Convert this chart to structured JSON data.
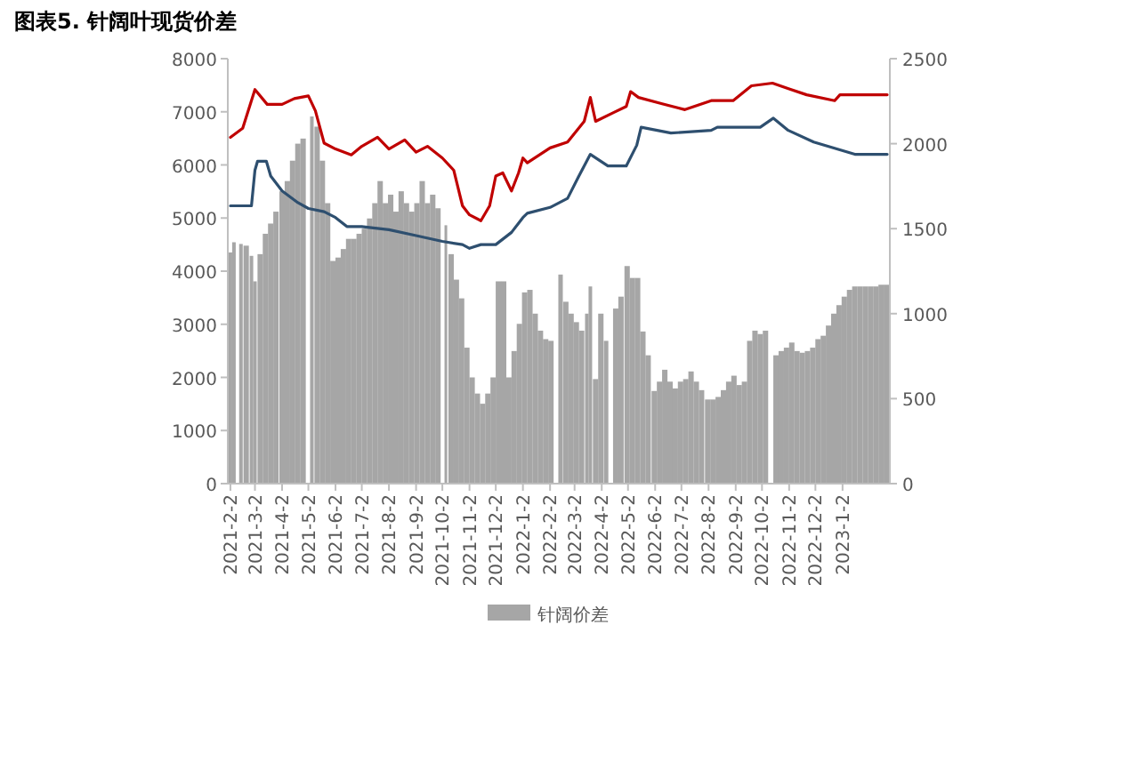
{
  "chart_data": {
    "type": "bar",
    "title": "图表5.   针阔叶现货价差",
    "xlim": [
      "2021-01-30",
      "2023-02-25"
    ],
    "xticks": [
      {
        "value": "2021-02-02",
        "label": "2021-2-2"
      },
      {
        "value": "2021-03-02",
        "label": "2021-3-2"
      },
      {
        "value": "2021-04-02",
        "label": "2021-4-2"
      },
      {
        "value": "2021-05-02",
        "label": "2021-5-2"
      },
      {
        "value": "2021-06-02",
        "label": "2021-6-2"
      },
      {
        "value": "2021-07-02",
        "label": "2021-7-2"
      },
      {
        "value": "2021-08-02",
        "label": "2021-8-2"
      },
      {
        "value": "2021-09-02",
        "label": "2021-9-2"
      },
      {
        "value": "2021-10-02",
        "label": "2021-10-2"
      },
      {
        "value": "2021-11-02",
        "label": "2021-11-2"
      },
      {
        "value": "2021-12-02",
        "label": "2021-12-2"
      },
      {
        "value": "2022-01-02",
        "label": "2022-1-2"
      },
      {
        "value": "2022-02-02",
        "label": "2022-2-2"
      },
      {
        "value": "2022-03-02",
        "label": "2022-3-2"
      },
      {
        "value": "2022-04-02",
        "label": "2022-4-2"
      },
      {
        "value": "2022-05-02",
        "label": "2022-5-2"
      },
      {
        "value": "2022-06-02",
        "label": "2022-6-2"
      },
      {
        "value": "2022-07-02",
        "label": "2022-7-2"
      },
      {
        "value": "2022-08-02",
        "label": "2022-8-2"
      },
      {
        "value": "2022-09-02",
        "label": "2022-9-2"
      },
      {
        "value": "2022-10-02",
        "label": "2022-10-2"
      },
      {
        "value": "2022-11-02",
        "label": "2022-11-2"
      },
      {
        "value": "2022-12-02",
        "label": "2022-12-2"
      },
      {
        "value": "2023-01-02",
        "label": "2023-1-2"
      }
    ],
    "ylim": [
      0,
      8000
    ],
    "yticks": [
      0,
      1000,
      2000,
      3000,
      4000,
      5000,
      6000,
      7000,
      8000
    ],
    "y2lim": [
      0,
      2500
    ],
    "y2ticks": [
      0,
      500,
      1000,
      1500,
      2000,
      2500
    ],
    "legend": "bottom",
    "grid": false,
    "series": [
      {
        "name": "针阔价差",
        "axis": "y2",
        "color": "#a6a6a6",
        "x": [
          "2021-02-02",
          "2021-02-06",
          "2021-02-10",
          "2021-02-14",
          "2021-02-20",
          "2021-02-26",
          "2021-03-02",
          "2021-03-08",
          "2021-03-14",
          "2021-03-20",
          "2021-03-26",
          "2021-04-02",
          "2021-04-08",
          "2021-04-14",
          "2021-04-20",
          "2021-04-26",
          "2021-05-02",
          "2021-05-06",
          "2021-05-12",
          "2021-05-18",
          "2021-05-24",
          "2021-05-30",
          "2021-06-05",
          "2021-06-11",
          "2021-06-17",
          "2021-06-23",
          "2021-06-29",
          "2021-07-05",
          "2021-07-11",
          "2021-07-17",
          "2021-07-23",
          "2021-07-29",
          "2021-08-04",
          "2021-08-10",
          "2021-08-16",
          "2021-08-22",
          "2021-08-28",
          "2021-09-03",
          "2021-09-09",
          "2021-09-15",
          "2021-09-21",
          "2021-09-27",
          "2021-10-03",
          "2021-10-06",
          "2021-10-12",
          "2021-10-18",
          "2021-10-24",
          "2021-10-30",
          "2021-11-05",
          "2021-11-11",
          "2021-11-17",
          "2021-11-23",
          "2021-11-29",
          "2021-12-05",
          "2021-12-11",
          "2021-12-17",
          "2021-12-23",
          "2021-12-29",
          "2022-01-04",
          "2022-01-10",
          "2022-01-16",
          "2022-01-22",
          "2022-01-28",
          "2022-02-03",
          "2022-02-09",
          "2022-02-14",
          "2022-02-20",
          "2022-02-26",
          "2022-03-04",
          "2022-03-10",
          "2022-03-16",
          "2022-03-20",
          "2022-03-26",
          "2022-04-01",
          "2022-04-07",
          "2022-04-12",
          "2022-04-18",
          "2022-04-24",
          "2022-05-01",
          "2022-05-07",
          "2022-05-13",
          "2022-05-19",
          "2022-05-25",
          "2022-06-01",
          "2022-06-07",
          "2022-06-13",
          "2022-06-19",
          "2022-06-25",
          "2022-07-01",
          "2022-07-07",
          "2022-07-13",
          "2022-07-19",
          "2022-07-25",
          "2022-08-01",
          "2022-08-07",
          "2022-08-13",
          "2022-08-19",
          "2022-08-25",
          "2022-08-31",
          "2022-09-06",
          "2022-09-12",
          "2022-09-18",
          "2022-09-24",
          "2022-09-30",
          "2022-10-06",
          "2022-10-12",
          "2022-10-18",
          "2022-10-24",
          "2022-10-30",
          "2022-11-05",
          "2022-11-11",
          "2022-11-17",
          "2022-11-23",
          "2022-11-29",
          "2022-12-05",
          "2022-12-11",
          "2022-12-17",
          "2022-12-23",
          "2022-12-29",
          "2023-01-04",
          "2023-01-10",
          "2023-01-16",
          "2023-01-22",
          "2023-01-28",
          "2023-02-03",
          "2023-02-09",
          "2023-02-15",
          "2023-02-21"
        ],
        "values": [
          1360,
          1420,
          null,
          1410,
          1400,
          1340,
          1190,
          1350,
          1470,
          1530,
          1600,
          1720,
          1780,
          1900,
          2000,
          2030,
          null,
          2160,
          2100,
          1900,
          1650,
          1310,
          1330,
          1380,
          1440,
          1440,
          1470,
          1500,
          1560,
          1650,
          1780,
          1650,
          1700,
          1600,
          1720,
          1650,
          1600,
          1650,
          1780,
          1650,
          1700,
          1620,
          null,
          1520,
          1350,
          1200,
          1090,
          800,
          625,
          530,
          470,
          530,
          625,
          1190,
          1190,
          625,
          780,
          940,
          1125,
          1140,
          1000,
          900,
          850,
          840,
          null,
          1230,
          1070,
          1000,
          950,
          900,
          1000,
          1160,
          615,
          1000,
          840,
          null,
          1030,
          1100,
          1280,
          1210,
          1210,
          895,
          755,
          545,
          600,
          670,
          600,
          560,
          600,
          615,
          660,
          600,
          550,
          495,
          495,
          510,
          550,
          600,
          635,
          580,
          600,
          840,
          900,
          880,
          900,
          null,
          755,
          780,
          800,
          830,
          780,
          770,
          780,
          800,
          850,
          870,
          930,
          1000,
          1050,
          1100,
          1140,
          1160,
          1160,
          1160,
          1160,
          1160,
          1170,
          1170
        ]
      },
      {
        "type": "line",
        "color": "#c00000",
        "x": [
          "2021-02-02",
          "2021-02-16",
          "2021-03-02",
          "2021-03-16",
          "2021-04-02",
          "2021-04-16",
          "2021-05-02",
          "2021-05-10",
          "2021-05-20",
          "2021-06-02",
          "2021-06-20",
          "2021-07-02",
          "2021-07-20",
          "2021-08-02",
          "2021-08-20",
          "2021-09-02",
          "2021-09-15",
          "2021-10-02",
          "2021-10-15",
          "2021-10-25",
          "2021-11-02",
          "2021-11-15",
          "2021-11-25",
          "2021-12-02",
          "2021-12-10",
          "2021-12-20",
          "2021-12-28",
          "2022-01-02",
          "2022-01-07",
          "2022-02-02",
          "2022-02-22",
          "2022-03-13",
          "2022-03-20",
          "2022-03-26",
          "2022-04-16",
          "2022-04-30",
          "2022-05-05",
          "2022-05-14",
          "2022-06-10",
          "2022-07-06",
          "2022-08-05",
          "2022-08-30",
          "2022-09-20",
          "2022-10-14",
          "2022-11-02",
          "2022-11-22",
          "2022-12-24",
          "2022-12-30",
          "2023-02-22"
        ],
        "values": [
          6520,
          6690,
          7420,
          7140,
          7140,
          7250,
          7300,
          7020,
          6410,
          6300,
          6190,
          6350,
          6520,
          6300,
          6470,
          6240,
          6350,
          6130,
          5900,
          5230,
          5060,
          4950,
          5230,
          5790,
          5850,
          5510,
          5850,
          6130,
          6040,
          6320,
          6430,
          6820,
          7270,
          6820,
          6990,
          7100,
          7380,
          7270,
          7150,
          7040,
          7210,
          7210,
          7490,
          7540,
          7430,
          7320,
          7210,
          7320,
          7320
        ]
      },
      {
        "type": "line",
        "color": "#2e4f6f",
        "x": [
          "2021-02-02",
          "2021-02-26",
          "2021-03-02",
          "2021-03-05",
          "2021-03-15",
          "2021-03-20",
          "2021-04-02",
          "2021-04-20",
          "2021-05-02",
          "2021-05-20",
          "2021-06-02",
          "2021-06-15",
          "2021-07-02",
          "2021-08-02",
          "2021-09-02",
          "2021-10-02",
          "2021-10-25",
          "2021-11-02",
          "2021-11-15",
          "2021-12-02",
          "2021-12-20",
          "2022-01-02",
          "2022-01-07",
          "2022-02-02",
          "2022-02-22",
          "2022-03-06",
          "2022-03-20",
          "2022-04-09",
          "2022-04-30",
          "2022-05-12",
          "2022-05-17",
          "2022-06-20",
          "2022-08-05",
          "2022-08-12",
          "2022-09-30",
          "2022-10-15",
          "2022-11-01",
          "2022-11-30",
          "2023-01-16",
          "2023-02-22"
        ],
        "values": [
          5230,
          5230,
          5900,
          6070,
          6070,
          5790,
          5510,
          5290,
          5180,
          5120,
          5010,
          4840,
          4840,
          4780,
          4670,
          4560,
          4500,
          4430,
          4500,
          4500,
          4730,
          5010,
          5090,
          5200,
          5370,
          5760,
          6200,
          5980,
          5980,
          6370,
          6710,
          6600,
          6650,
          6710,
          6710,
          6880,
          6650,
          6430,
          6200,
          6200
        ]
      }
    ]
  }
}
